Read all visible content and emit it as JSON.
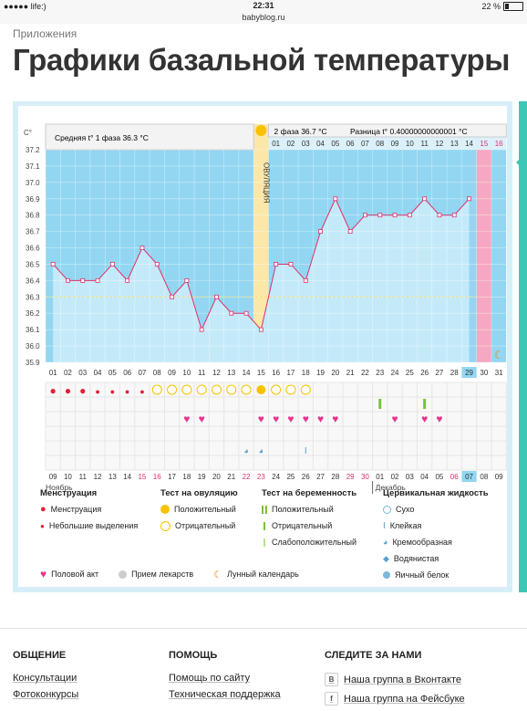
{
  "status_bar": {
    "carrier": "●●●●● life:)",
    "time": "22:31",
    "battery": "22 %",
    "battery_level": 0.22
  },
  "url": "babyblog.ru",
  "breadcrumb": "Приложения",
  "page_title": "Графики базальной температуры",
  "chart_data": {
    "type": "line",
    "ylabel": "C°",
    "ylim": [
      35.9,
      37.2
    ],
    "yticks": [
      "37.2",
      "37.1",
      "37.0",
      "36.9",
      "36.8",
      "36.7",
      "36.6",
      "36.5",
      "36.4",
      "36.3",
      "36.2",
      "36.1",
      "36.0",
      "35.9"
    ],
    "phase1_label": "Средняя t° 1 фаза 36.3 °C",
    "phase2_label": "2 фаза 36.7 °C",
    "diff_label": "Разница t° 0.40000000000001 °C",
    "ovulation_label": "ОВУЛЯЦИЯ",
    "cycle_days": [
      "01",
      "02",
      "03",
      "04",
      "05",
      "06",
      "07",
      "08",
      "09",
      "10",
      "11",
      "12",
      "13",
      "14",
      "15",
      "16",
      "17",
      "18",
      "19",
      "20",
      "21",
      "22",
      "23",
      "24",
      "25",
      "26",
      "27",
      "28",
      "29",
      "30",
      "31"
    ],
    "post_ovulation_days": [
      "01",
      "02",
      "03",
      "04",
      "05",
      "06",
      "07",
      "08",
      "09",
      "10",
      "11",
      "12",
      "13",
      "14",
      "15",
      "16"
    ],
    "temperatures": [
      36.5,
      36.4,
      36.4,
      36.4,
      36.5,
      36.4,
      36.6,
      36.5,
      36.3,
      36.4,
      36.1,
      36.3,
      36.2,
      36.2,
      36.1,
      36.5,
      36.5,
      36.4,
      36.7,
      36.9,
      36.7,
      36.8,
      36.8,
      36.8,
      36.8,
      36.9,
      36.8,
      36.8,
      36.9
    ],
    "highlight_day": "29",
    "calendar_dates": [
      "09",
      "10",
      "11",
      "12",
      "13",
      "14",
      "15",
      "16",
      "17",
      "18",
      "19",
      "20",
      "21",
      "22",
      "23",
      "24",
      "25",
      "26",
      "27",
      "28",
      "29",
      "30",
      "01",
      "02",
      "03",
      "04",
      "05",
      "06",
      "07",
      "08",
      "09"
    ],
    "month_labels": [
      "Ноябрь",
      "Декабрь"
    ],
    "menstruation": [
      "full",
      "full",
      "full",
      "small",
      "small",
      "small",
      "small"
    ],
    "ovulation_tests": [
      "neg",
      "neg",
      "neg",
      "neg",
      "neg",
      "neg",
      "neg",
      "pos",
      "neg",
      "neg",
      "neg"
    ],
    "pregnancy_tests": [
      "pos",
      "pos"
    ],
    "intercourse_days": [
      9,
      10,
      14,
      15,
      16,
      17,
      18,
      19,
      23,
      25,
      26
    ],
    "fluid_days": [
      14,
      15,
      18
    ]
  },
  "legend": {
    "menstruation": {
      "title": "Менструация",
      "items": [
        "Менструация",
        "Небольшие выделения"
      ]
    },
    "ovulation": {
      "title": "Тест на овуляцию",
      "items": [
        "Положительный",
        "Отрицательный"
      ]
    },
    "pregnancy": {
      "title": "Тест на беременность",
      "items": [
        "Положительный",
        "Отрицательный",
        "Слабоположительный"
      ]
    },
    "fluid": {
      "title": "Цервикальная жидкость",
      "items": [
        "Сухо",
        "Клейкая",
        "Кремообразная",
        "Водянистая",
        "Яичный белок"
      ]
    },
    "bottom": [
      "Половой акт",
      "Прием лекарств",
      "Лунный календарь"
    ]
  },
  "footer": {
    "col1": {
      "title": "ОБЩЕНИЕ",
      "links": [
        "Консультации",
        "Фотоконкурсы"
      ]
    },
    "col2": {
      "title": "ПОМОЩЬ",
      "links": [
        "Помощь по сайту",
        "Техническая поддержка"
      ]
    },
    "col3": {
      "title": "СЛЕДИТЕ ЗА НАМИ",
      "links": [
        "Наша группа в Вконтакте",
        "Наша группа на Фейсбуке"
      ],
      "icons": [
        "В",
        "f"
      ]
    }
  },
  "colors": {
    "chart_bg": "#92d6f2",
    "chart_below": "#c4eaf9",
    "line": "#e0306a",
    "ovulation": "#fbe7a8",
    "menses_marker": "#f6a8c2",
    "accent": "#3ec7b5"
  }
}
